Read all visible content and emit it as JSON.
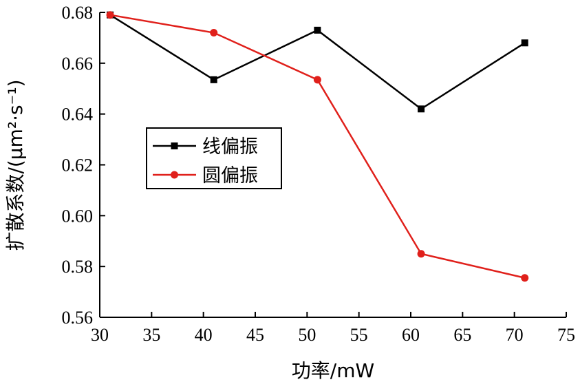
{
  "chart_data": {
    "type": "line",
    "xlabel": "功率/mW",
    "ylabel": "扩散系数/(μm²·s⁻¹)",
    "xlim": [
      30,
      75
    ],
    "ylim": [
      0.56,
      0.68
    ],
    "xticks": [
      30,
      35,
      40,
      45,
      50,
      55,
      60,
      65,
      70,
      75
    ],
    "yticks": [
      "0.56",
      "0.58",
      "0.60",
      "0.62",
      "0.64",
      "0.66",
      "0.68"
    ],
    "grid": false,
    "legend_position": "middle-left",
    "x": [
      31,
      41,
      51,
      61,
      71
    ],
    "series": [
      {
        "name": "线偏振",
        "color": "#000000",
        "marker": "square",
        "values": [
          0.679,
          0.6535,
          0.673,
          0.642,
          0.668
        ]
      },
      {
        "name": "圆偏振",
        "color": "#e0201b",
        "marker": "circle",
        "values": [
          0.679,
          0.672,
          0.6535,
          0.585,
          0.5755
        ]
      }
    ]
  }
}
